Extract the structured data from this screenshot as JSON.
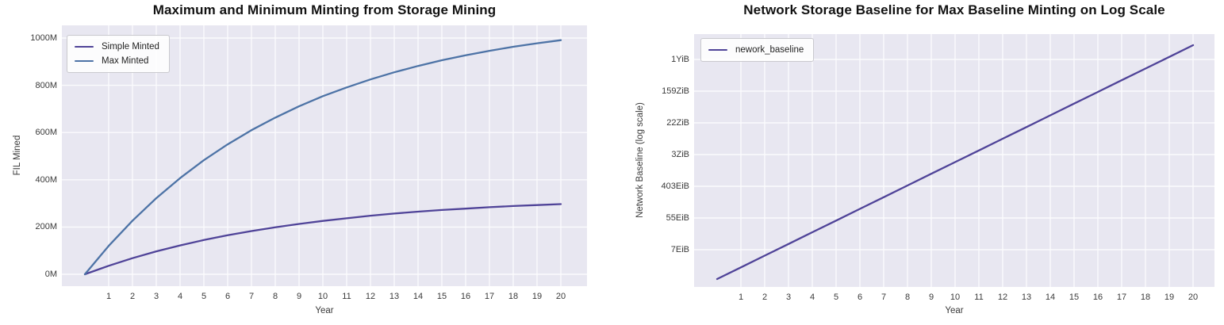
{
  "chart_data": [
    {
      "type": "line",
      "title": "Maximum and Minimum Minting from Storage Mining",
      "xlabel": "Year",
      "ylabel": "FIL Mined",
      "x": [
        0,
        1,
        2,
        3,
        4,
        5,
        6,
        7,
        8,
        9,
        10,
        11,
        12,
        13,
        14,
        15,
        16,
        17,
        18,
        19,
        20
      ],
      "series": [
        {
          "name": "Simple Minted",
          "color": "#4f4398",
          "values": [
            0,
            36,
            68,
            97,
            122,
            145,
            165,
            183,
            199,
            213,
            226,
            237,
            248,
            257,
            265,
            272,
            278,
            284,
            289,
            293,
            297
          ]
        },
        {
          "name": "Max Minted",
          "color": "#4d73a6",
          "values": [
            0,
            120,
            227,
            322,
            407,
            483,
            550,
            610,
            663,
            711,
            754,
            791,
            825,
            855,
            882,
            906,
            927,
            946,
            963,
            978,
            991
          ]
        }
      ],
      "values_unit": "M FIL",
      "xticks": [
        "1",
        "2",
        "3",
        "4",
        "5",
        "6",
        "7",
        "8",
        "9",
        "10",
        "11",
        "12",
        "13",
        "14",
        "15",
        "16",
        "17",
        "18",
        "19",
        "20"
      ],
      "yticks": [
        "0M",
        "200M",
        "400M",
        "600M",
        "800M",
        "1000M"
      ],
      "ytick_values": [
        0,
        200,
        400,
        600,
        800,
        1000
      ],
      "xlim": [
        -1,
        21.1
      ],
      "ylim": [
        -50,
        1055
      ],
      "grid": true,
      "legend_position": "upper left",
      "plot_bg": "#e8e7f1",
      "grid_color": "#fbfbfd"
    },
    {
      "type": "line",
      "title": "Network Storage Baseline for Max Baseline Minting on Log Scale",
      "xlabel": "Year",
      "ylabel": "Network Baseline (log scale)",
      "x": [
        0,
        1,
        2,
        3,
        4,
        5,
        6,
        7,
        8,
        9,
        10,
        11,
        12,
        13,
        14,
        15,
        16,
        17,
        18,
        19,
        20
      ],
      "series": [
        {
          "name": "nework_baseline",
          "color": "#4f4398",
          "values_EiB": [
            2.5,
            5,
            10,
            20,
            40,
            80,
            160,
            320,
            640,
            1280,
            2560,
            5120,
            10240,
            20480,
            40960,
            81920,
            163840,
            327680,
            655360,
            1310720,
            2621440
          ]
        }
      ],
      "yscale": "log",
      "xticks": [
        "1",
        "2",
        "3",
        "4",
        "5",
        "6",
        "7",
        "8",
        "9",
        "10",
        "11",
        "12",
        "13",
        "14",
        "15",
        "16",
        "17",
        "18",
        "19",
        "20"
      ],
      "yticks": [
        "7EiB",
        "55EiB",
        "403EiB",
        "3ZiB",
        "22ZiB",
        "159ZiB",
        "1YiB"
      ],
      "grid": true,
      "legend_position": "upper left",
      "plot_bg": "#e8e7f1",
      "grid_color": "#fbfbfd"
    }
  ]
}
